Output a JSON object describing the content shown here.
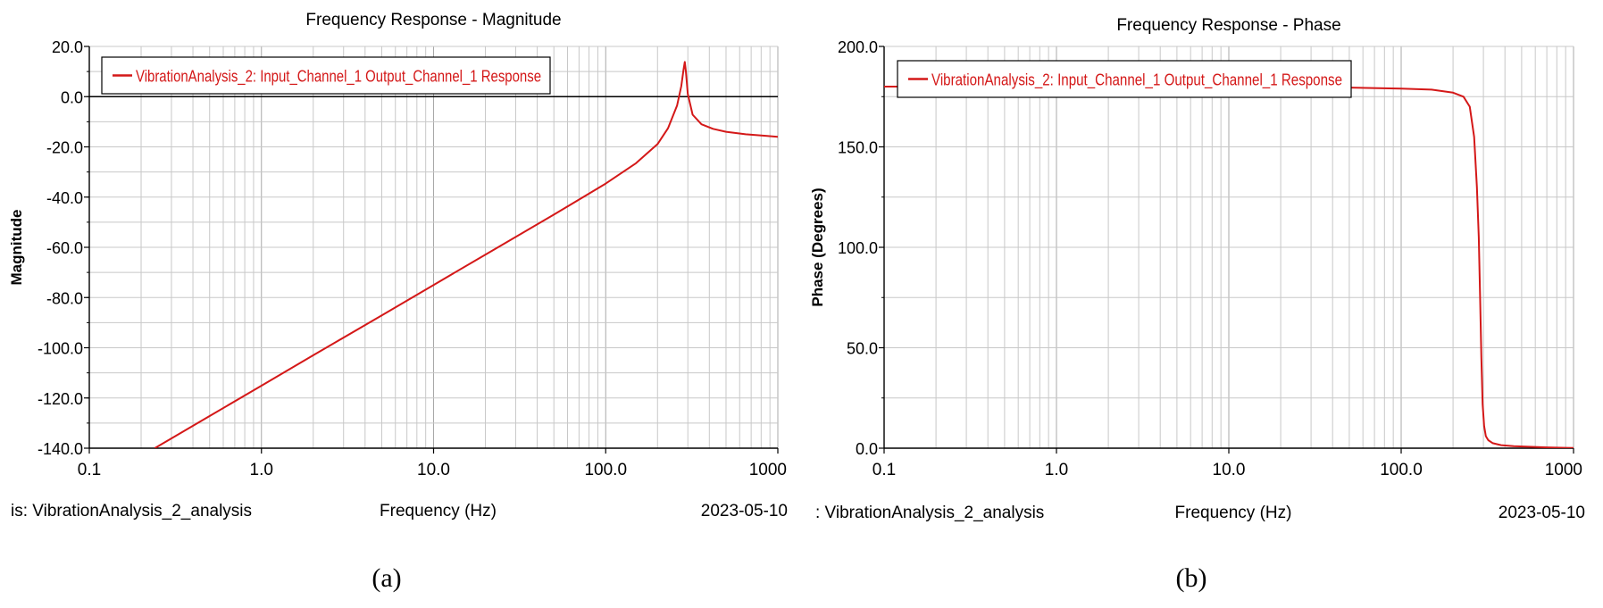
{
  "colors": {
    "series": "#d41818",
    "grid": "#c8c8c8",
    "axis": "#000000",
    "zero_line": "#000000"
  },
  "chart_data": [
    {
      "type": "line",
      "title": "Frequency Response - Magnitude",
      "xlabel": "Frequency (Hz)",
      "ylabel": "Magnitude",
      "x_scale": "log",
      "xlim": [
        0.1,
        1000
      ],
      "ylim": [
        -140,
        20
      ],
      "x_ticks": [
        0.1,
        1,
        10,
        100,
        1000
      ],
      "x_tick_labels": [
        "0.1",
        "1.0",
        "10.0",
        "100.0",
        "1000"
      ],
      "y_ticks": [
        20,
        0,
        -20,
        -40,
        -60,
        -80,
        -100,
        -120,
        -140
      ],
      "y_tick_labels": [
        "20.0",
        "0.0",
        "-20.0",
        "-40.0",
        "-60.0",
        "-80.0",
        "-100.0",
        "-120.0",
        "-140.0"
      ],
      "grid": true,
      "zero_line": true,
      "legend_position": "top-left",
      "footer_left": "is:  VibrationAnalysis_2_analysis",
      "footer_right": "2023-05-10",
      "caption": "(a)",
      "series": [
        {
          "name": "VibrationAnalysis_2: Input_Channel_1 Output_Channel_1 Response",
          "x": [
            0.24,
            0.5,
            1,
            2,
            5,
            10,
            20,
            50,
            100,
            150,
            200,
            230,
            260,
            275,
            283,
            288,
            292,
            300,
            320,
            360,
            420,
            500,
            650,
            850,
            1000
          ],
          "y": [
            -140,
            -127.2,
            -115.1,
            -103,
            -87.1,
            -75,
            -62.9,
            -47,
            -34.6,
            -26.5,
            -18.9,
            -12.6,
            -3.5,
            4.2,
            10.5,
            13.8,
            10.2,
            1,
            -7.2,
            -11,
            -12.8,
            -14,
            -15,
            -15.6,
            -16
          ]
        }
      ]
    },
    {
      "type": "line",
      "title": "Frequency Response - Phase",
      "xlabel": "Frequency (Hz)",
      "ylabel": "Phase (Degrees)",
      "x_scale": "log",
      "xlim": [
        0.1,
        1000
      ],
      "ylim": [
        0,
        200
      ],
      "x_ticks": [
        0.1,
        1,
        10,
        100,
        1000
      ],
      "x_tick_labels": [
        "0.1",
        "1.0",
        "10.0",
        "100.0",
        "1000"
      ],
      "y_ticks": [
        200,
        150,
        100,
        50,
        0
      ],
      "y_tick_labels": [
        "200.0",
        "150.0",
        "100.0",
        "50.0",
        "0.0"
      ],
      "grid": true,
      "zero_line": false,
      "legend_position": "top-left",
      "footer_left": ":  VibrationAnalysis_2_analysis",
      "footer_right": "2023-05-10",
      "caption": "(b)",
      "series": [
        {
          "name": "VibrationAnalysis_2: Input_Channel_1 Output_Channel_1 Response",
          "x": [
            0.1,
            10,
            50,
            100,
            150,
            200,
            230,
            250,
            265,
            275,
            282,
            287,
            292,
            297,
            303,
            310,
            320,
            340,
            380,
            450,
            550,
            700,
            900,
            1000
          ],
          "y": [
            180,
            180,
            179.5,
            179,
            178.5,
            177,
            175,
            170,
            155,
            130,
            105,
            75,
            45,
            22,
            11,
            6,
            4,
            2.5,
            1.5,
            1,
            0.7,
            0.4,
            0.2,
            0.1
          ]
        }
      ]
    }
  ]
}
